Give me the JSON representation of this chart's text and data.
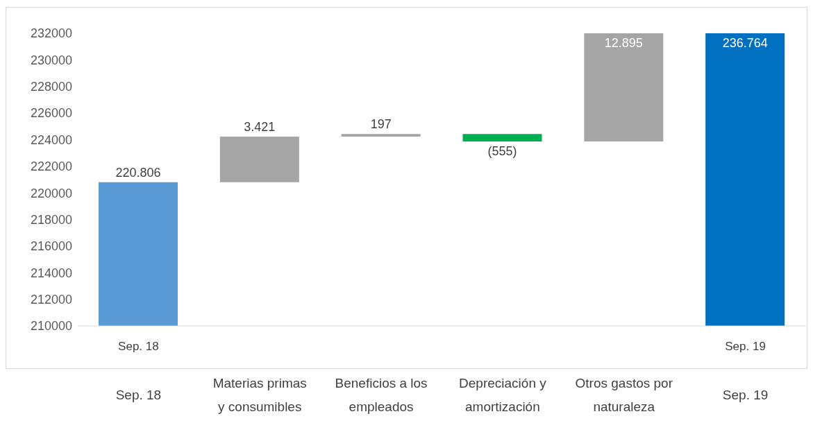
{
  "chart_data": {
    "type": "bar",
    "categories": [
      "Sep. 18",
      "Materias primas y consumibles",
      "Beneficios a los empleados",
      "Depreciación y amortización",
      "Otros gastos por naturaleza",
      "Sep. 19"
    ],
    "values": [
      220806,
      3421,
      197,
      -555,
      12895,
      236764
    ],
    "base": [
      null,
      220806,
      224227,
      224424,
      223869,
      null
    ],
    "colors": [
      "#5b9bd5",
      "#a5a5a5",
      "#a5a5a5",
      "#00b050",
      "#a5a5a5",
      "#0070c0"
    ],
    "value_labels": [
      "220.806",
      "3.421",
      "197",
      "(555)",
      "12.895",
      "236.764"
    ],
    "ylim": [
      210000,
      232000
    ],
    "yticks": [
      210000,
      212000,
      214000,
      216000,
      218000,
      220000,
      222000,
      224000,
      226000,
      228000,
      230000,
      232000
    ],
    "grid": false,
    "legend": false,
    "annotations": [
      "Sep. 18",
      "Sep. 19"
    ]
  }
}
